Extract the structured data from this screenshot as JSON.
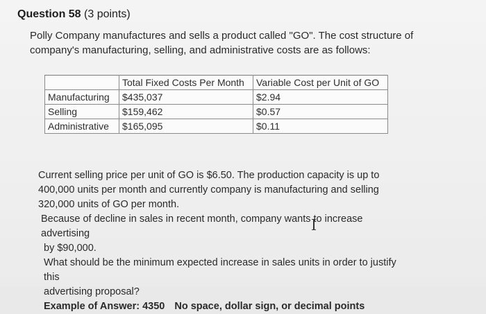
{
  "question": {
    "number_label": "Question 58",
    "points_label": "(3 points)"
  },
  "intro": {
    "line1": "Polly Company manufactures and sells a product called \"GO\". The cost structure of",
    "line2": "company's manufacturing, selling, and administrative costs are as follows:"
  },
  "table": {
    "headers": [
      "",
      "Total Fixed Costs Per Month",
      "Variable Cost per Unit of GO"
    ],
    "rows": [
      [
        "Manufacturing",
        "$435,037",
        "$2.94"
      ],
      [
        "Selling",
        "$159,462",
        "$0.57"
      ],
      [
        "Administrative",
        "$165,095",
        "$0.11"
      ]
    ]
  },
  "body": {
    "l1": "Current selling price per unit of GO is $6.50. The production capacity is up to",
    "l2": "400,000 units per month and currently company is manufacturing and selling",
    "l3": "320,000 units of GO per month.",
    "l4": "Because of decline in sales in recent month, company wants to increase advertising",
    "l5": "by $90,000.",
    "l6": "What should be the minimum expected increase in sales units in order to justify this",
    "l7": "advertising proposal?",
    "answer_example": "Example of Answer: 4350",
    "answer_note": "No space, dollar sign, or decimal points"
  }
}
